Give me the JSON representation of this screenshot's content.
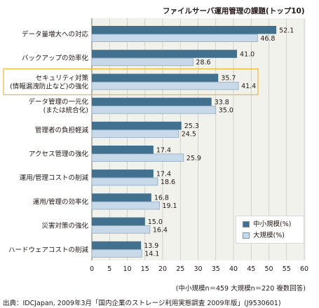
{
  "colors": {
    "panel_bg": "#f2f2ed",
    "gridline": "#c9c9c3",
    "sme_bar": "#41718f",
    "large_bar": "#c8daea",
    "large_bar_border": "#8fa9bf",
    "highlight_border": "#f0b634"
  },
  "title": "ファイルサーバ運用管理の課題(トップ10)",
  "respondent_note": "(中小規模n＝459 大規模n＝220 複数回答)",
  "source_note": "出典：IDCJapan, 2009年3月「国内企業のストレージ利用実態調査 2009年版」(J9530601)",
  "chart_data": {
    "type": "bar",
    "orientation": "horizontal",
    "grid": true,
    "legend_position": "bottom-right",
    "highlighted_category_index": 2,
    "categories": [
      [
        "データ量増大への対応"
      ],
      [
        "バックアップの効率化"
      ],
      [
        "セキュリティ対策",
        "(情報漏洩防止など)の強化"
      ],
      [
        "データ管理の一元化",
        "(または統合化)"
      ],
      [
        "管理者の負担軽減"
      ],
      [
        "アクセス管理の強化"
      ],
      [
        "運用/管理コストの削減"
      ],
      [
        "運用/管理の効率化"
      ],
      [
        "災害対策の強化"
      ],
      [
        "ハードウェアコストの削減"
      ]
    ],
    "series": [
      {
        "name": "中小規模(%)",
        "values": [
          52.1,
          41.0,
          35.7,
          33.8,
          25.3,
          17.4,
          17.4,
          16.8,
          15.0,
          13.9
        ]
      },
      {
        "name": "大規模(%)",
        "values": [
          46.8,
          28.6,
          41.4,
          35.0,
          24.5,
          25.9,
          18.6,
          19.1,
          16.4,
          14.1
        ]
      }
    ],
    "xlim": [
      0,
      60
    ],
    "xticks": [
      0,
      5,
      10,
      15,
      20,
      25,
      30,
      35,
      40,
      45,
      50,
      55,
      60
    ]
  }
}
